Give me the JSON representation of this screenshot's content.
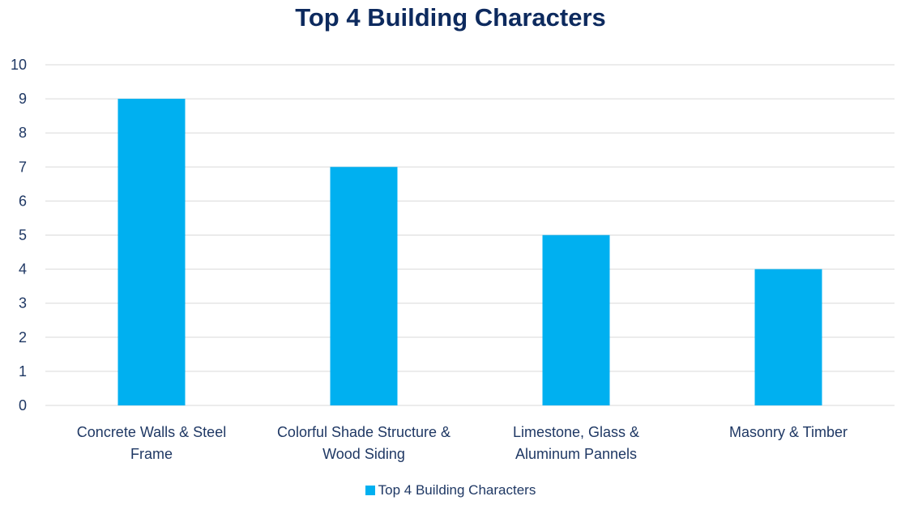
{
  "chart_data": {
    "type": "bar",
    "title": "Top 4 Building Characters",
    "categories": [
      [
        "Concrete Walls & Steel",
        "Frame"
      ],
      [
        "Colorful Shade Structure &",
        "Wood Siding"
      ],
      [
        "Limestone, Glass &",
        "Aluminum Pannels"
      ],
      [
        "Masonry & Timber"
      ]
    ],
    "series": [
      {
        "name": "Top 4 Building Characters",
        "values": [
          9,
          7,
          5,
          4
        ],
        "color": "#00b0f0"
      }
    ],
    "ylim": [
      0,
      10
    ],
    "y_ticks": [
      "0",
      "1",
      "2",
      "3",
      "4",
      "5",
      "6",
      "7",
      "8",
      "9",
      "10"
    ],
    "xlabel": "",
    "ylabel": "",
    "grid": true,
    "legend_position": "bottom"
  }
}
